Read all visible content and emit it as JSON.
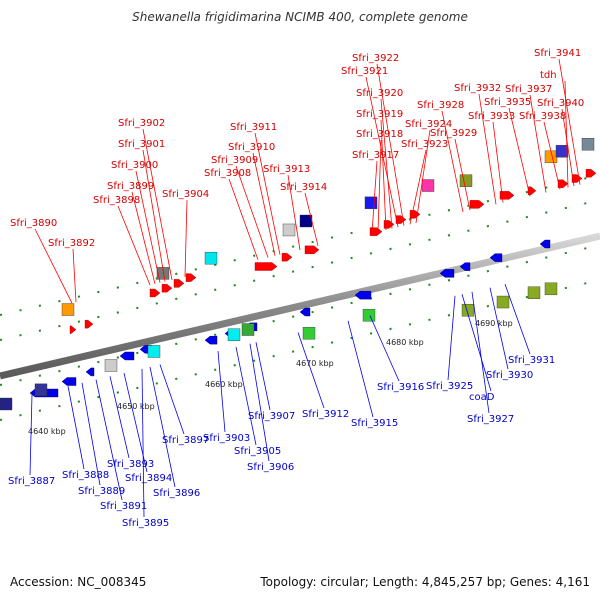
{
  "title": "Shewanella frigidimarina NCIMB 400, complete genome",
  "footer": {
    "accession": "Accession: NC_008345",
    "topology": "Topology: circular; Length: 4,845,257 bp; Genes: 4,161"
  },
  "kbp_ticks": [
    "4640 kbp",
    "4650 kbp",
    "4660 kbp",
    "4670 kbp",
    "4680 kbp",
    "4690 kbp"
  ],
  "top_labels": [
    "Sfri_3890",
    "Sfri_3892",
    "Sfri_3898",
    "Sfri_3899",
    "Sfri_3900",
    "Sfri_3901",
    "Sfri_3902",
    "Sfri_3904",
    "Sfri_3908",
    "Sfri_3909",
    "Sfri_3910",
    "Sfri_3911",
    "Sfri_3913",
    "Sfri_3914",
    "Sfri_3917",
    "Sfri_3918",
    "Sfri_3919",
    "Sfri_3920",
    "Sfri_3921",
    "Sfri_3922",
    "Sfri_3923",
    "Sfri_3924",
    "Sfri_3928",
    "Sfri_3929",
    "Sfri_3932",
    "Sfri_3933",
    "Sfri_3935",
    "Sfri_3937",
    "Sfri_3938",
    "tdh",
    "Sfri_3940",
    "Sfri_3941"
  ],
  "bottom_labels": [
    "Sfri_3887",
    "Sfri_3888",
    "Sfri_3889",
    "Sfri_3891",
    "Sfri_3893",
    "Sfri_3894",
    "Sfri_3895",
    "Sfri_3896",
    "Sfri_3897",
    "Sfri_3903",
    "Sfri_3905",
    "Sfri_3906",
    "Sfri_3907",
    "Sfri_3912",
    "Sfri_3915",
    "Sfri_3916",
    "Sfri_3925",
    "coaD",
    "Sfri_3927",
    "Sfri_3930",
    "Sfri_3931"
  ],
  "colors": {
    "forward": "#ff0000",
    "reverse": "#0000ee",
    "backbone": "#999999"
  }
}
